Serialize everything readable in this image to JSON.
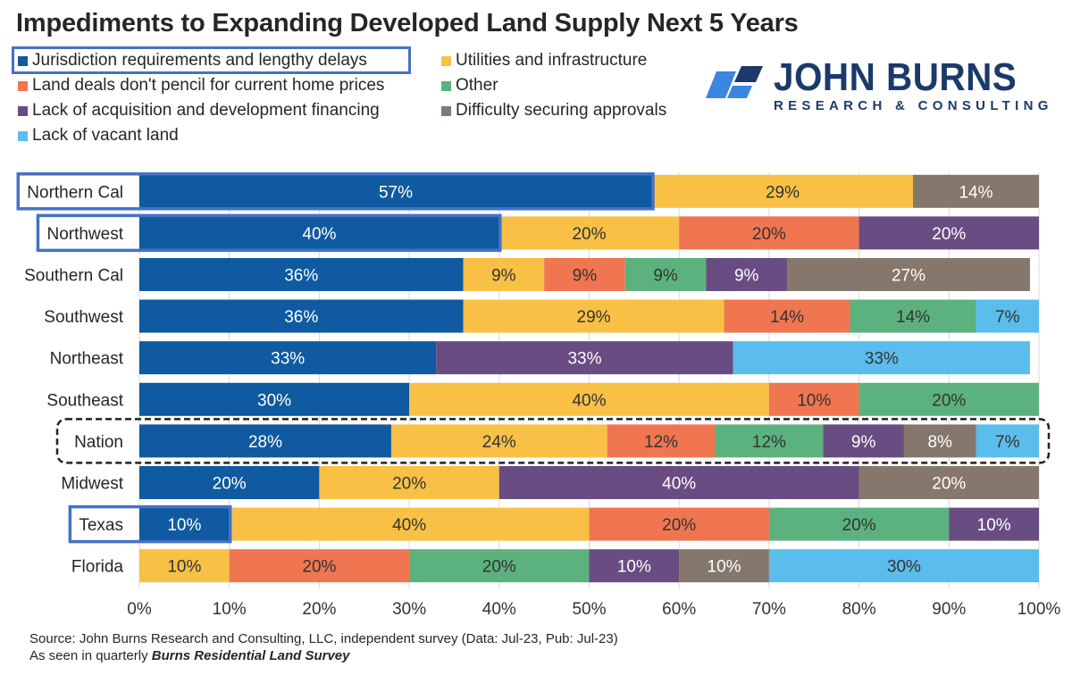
{
  "chart_data": {
    "type": "bar",
    "orientation": "horizontal-stacked-100",
    "title": "Impediments to Expanding Developed Land Supply Next 5 Years",
    "xlabel": "",
    "ylabel": "",
    "xlim": [
      0,
      100
    ],
    "grid": true,
    "legend_placement": "top-left",
    "x_ticks": [
      "0%",
      "10%",
      "20%",
      "30%",
      "40%",
      "50%",
      "60%",
      "70%",
      "80%",
      "90%",
      "100%"
    ],
    "categories": [
      "Northern Cal",
      "Northwest",
      "Southern Cal",
      "Southwest",
      "Northeast",
      "Southeast",
      "Nation",
      "Midwest",
      "Texas",
      "Florida"
    ],
    "series": [
      {
        "name": "Jurisdiction requirements and lengthy delays",
        "color": "#0f5aa0",
        "label_color": "#ffffff",
        "values": [
          57,
          40,
          36,
          36,
          33,
          30,
          28,
          20,
          10,
          0
        ]
      },
      {
        "name": "Utilities and infrastructure",
        "color": "#f8c146",
        "label_color": "#333333",
        "values": [
          29,
          20,
          9,
          29,
          0,
          40,
          24,
          20,
          40,
          10
        ]
      },
      {
        "name": "Land deals don't pencil for current home prices",
        "color": "#ef7650",
        "label_color": "#333333",
        "values": [
          0,
          20,
          9,
          14,
          0,
          10,
          12,
          0,
          20,
          20
        ]
      },
      {
        "name": "Other",
        "color": "#5cb27e",
        "label_color": "#333333",
        "values": [
          0,
          0,
          9,
          14,
          0,
          20,
          12,
          0,
          20,
          20
        ]
      },
      {
        "name": "Lack of acquisition and development financing",
        "color": "#684c82",
        "label_color": "#ffffff",
        "values": [
          0,
          20,
          9,
          0,
          33,
          0,
          9,
          40,
          10,
          10
        ]
      },
      {
        "name": "Difficulty securing approvals",
        "color": "#85776b",
        "label_color": "#ffffff",
        "values": [
          14,
          0,
          27,
          0,
          0,
          0,
          8,
          20,
          0,
          10
        ]
      },
      {
        "name": "Lack of vacant land",
        "color": "#5bbdeb",
        "label_color": "#333333",
        "values": [
          0,
          0,
          0,
          7,
          33,
          0,
          7,
          0,
          0,
          30
        ]
      }
    ],
    "highlights": {
      "solid_box_categories": [
        "Northern Cal",
        "Northwest",
        "Texas"
      ],
      "dashed_box_categories": [
        "Nation"
      ],
      "highlighted_legend": "Jurisdiction requirements and lengthy delays"
    }
  },
  "legend": [
    {
      "label": "Jurisdiction requirements and lengthy delays",
      "color": "#0f5aa0"
    },
    {
      "label": "Utilities and infrastructure",
      "color": "#f8c146"
    },
    {
      "label": "Land deals don't pencil for current home prices",
      "color": "#ef7650"
    },
    {
      "label": "Other",
      "color": "#5cb27e"
    },
    {
      "label": "Lack of acquisition and development financing",
      "color": "#684c82"
    },
    {
      "label": "Difficulty securing approvals",
      "color": "#85776b"
    },
    {
      "label": "Lack of vacant land",
      "color": "#5bbdeb"
    }
  ],
  "logo": {
    "name": "JOHN BURNS",
    "subtitle": "RESEARCH & CONSULTING",
    "color": "#1b3a6b",
    "accent": "#3a86e0"
  },
  "footer": {
    "source": "Source: John Burns Research and Consulting, LLC, independent survey (Data: Jul-23, Pub: Jul-23)",
    "as_seen_prefix": "As seen in quarterly ",
    "as_seen_publication": "Burns Residential Land Survey"
  },
  "highlight_color": "#4472c4"
}
